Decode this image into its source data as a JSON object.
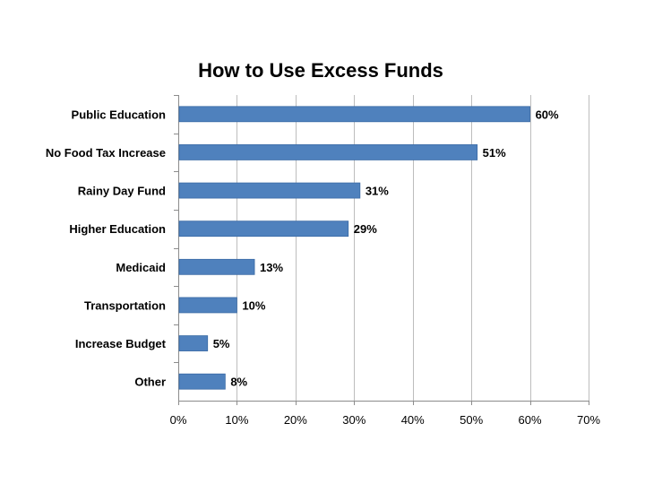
{
  "chart_data": {
    "type": "bar",
    "orientation": "horizontal",
    "title": "How to Use Excess Funds",
    "xlabel": "",
    "ylabel": "",
    "categories": [
      "Public Education",
      "No Food Tax Increase",
      "Rainy Day Fund",
      "Higher Education",
      "Medicaid",
      "Transportation",
      "Increase Budget",
      "Other"
    ],
    "values": [
      60,
      51,
      31,
      29,
      13,
      10,
      5,
      8
    ],
    "value_labels": [
      "60%",
      "51%",
      "31%",
      "29%",
      "13%",
      "10%",
      "5%",
      "8%"
    ],
    "xlim": [
      0,
      70
    ],
    "x_ticks": [
      0,
      10,
      20,
      30,
      40,
      50,
      60,
      70
    ],
    "x_tick_labels": [
      "0%",
      "10%",
      "20%",
      "30%",
      "40%",
      "50%",
      "60%",
      "70%"
    ],
    "grid": true,
    "legend": "none",
    "bar_color": "#4F81BD",
    "bar_edge_color": "#3A6AA5"
  }
}
